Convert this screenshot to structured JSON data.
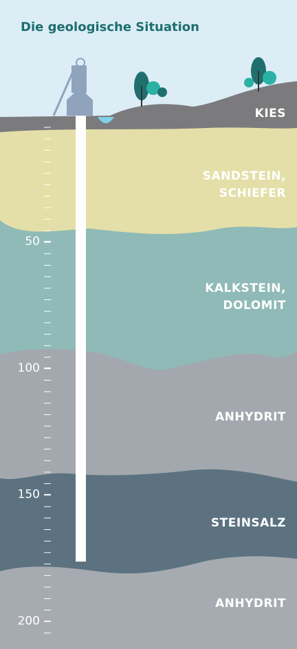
{
  "title": "Die geologische Situation",
  "layers": [
    {
      "lines": [
        "KIES"
      ]
    },
    {
      "lines": [
        "SANDSTEIN,",
        "SCHIEFER"
      ]
    },
    {
      "lines": [
        "KALKSTEIN,",
        "DOLOMIT"
      ]
    },
    {
      "lines": [
        "ANHYDRIT"
      ]
    },
    {
      "lines": [
        "STEINSALZ"
      ]
    },
    {
      "lines": [
        "ANHYDRIT"
      ]
    }
  ],
  "depth_axis": {
    "lim": [
      0,
      211
    ],
    "ticks": [
      50,
      100,
      150,
      200
    ]
  }
}
